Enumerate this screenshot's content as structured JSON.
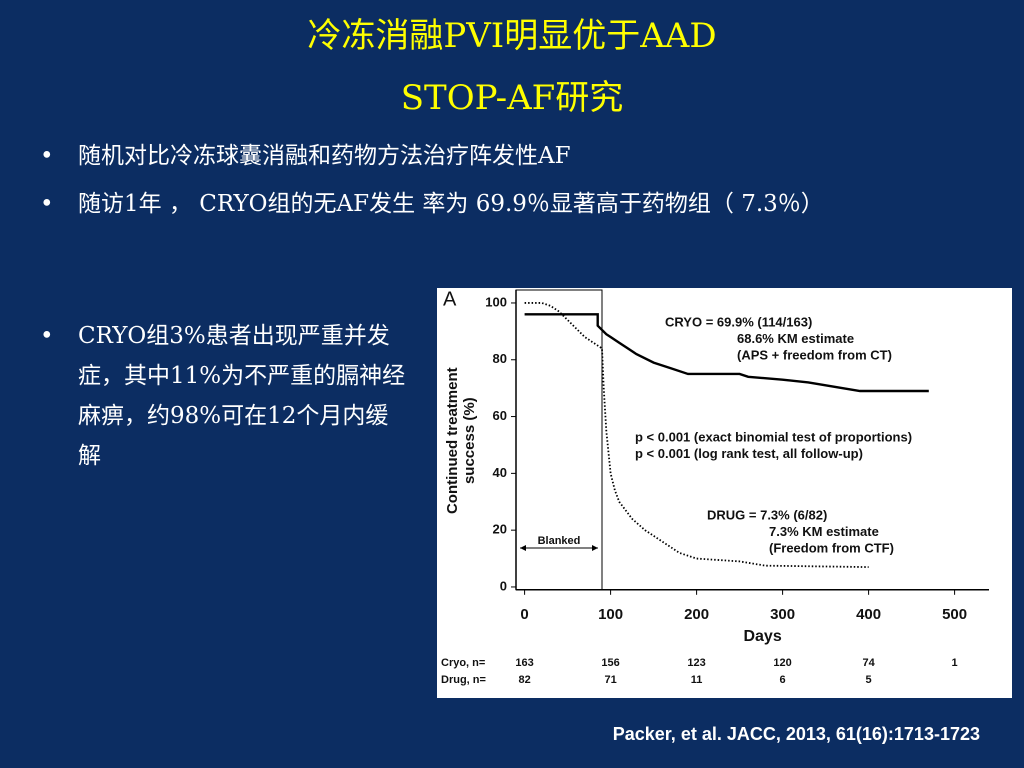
{
  "header": {
    "title": [
      "冷冻消融PVI明显优于AAD",
      "STOP-AF研究"
    ]
  },
  "bullets": [
    "随机对比冷冻球囊消融和药物方法治疗阵发性AF",
    "随访1年 ， CRYO组的无AF发生 率为 69.9％显著高于药物组（ 7.3％）"
  ],
  "side_bullet": "CRYO组3%患者出现严重并发症，其中11%为不严重的膈神经麻痹，约98%可在12个月内缓解",
  "citation": "Packer, et al.  JACC, 2013, 61(16):1713-1723",
  "chart_data": {
    "type": "line",
    "panel_label": "A",
    "xlabel": "Days",
    "ylabel": [
      "Continued treatment",
      "success (%)"
    ],
    "xlim": [
      -10,
      540
    ],
    "xticks": [
      0,
      100,
      200,
      300,
      400,
      500
    ],
    "ylim": [
      -1,
      104
    ],
    "yticks": [
      0,
      20,
      40,
      60,
      80,
      100
    ],
    "blanked": {
      "label": "Blanked",
      "range": [
        -10,
        90
      ]
    },
    "series": [
      {
        "name": "CRYO",
        "color": "#000000",
        "style": "solid",
        "x": [
          0,
          85,
          85,
          95,
          100,
          110,
          120,
          130,
          150,
          170,
          190,
          250,
          260,
          300,
          330,
          370,
          390,
          470
        ],
        "values": [
          96,
          96,
          92,
          89,
          88,
          86,
          84,
          82,
          79,
          77,
          75,
          75,
          74,
          73,
          72,
          70,
          69,
          69
        ]
      },
      {
        "name": "DRUG",
        "color": "#000000",
        "style": "dotted",
        "x": [
          0,
          20,
          30,
          40,
          50,
          60,
          70,
          80,
          90,
          92,
          95,
          100,
          105,
          110,
          125,
          140,
          160,
          180,
          200,
          250,
          280,
          400
        ],
        "values": [
          100,
          100,
          99,
          97,
          94,
          91,
          88,
          86,
          84,
          70,
          55,
          40,
          34,
          30,
          24,
          20,
          16,
          12,
          10,
          9,
          7.5,
          7
        ]
      }
    ],
    "annotations": [
      [
        "CRYO = 69.9% (114/163)",
        "68.6% KM estimate",
        "(APS + freedom from CT)"
      ],
      [
        "p < 0.001 (exact binomial test of proportions)",
        "p < 0.001 (log rank test, all follow-up)"
      ],
      [
        "DRUG = 7.3% (6/82)",
        "7.3% KM estimate",
        "(Freedom from CTF)"
      ]
    ],
    "at_risk": [
      {
        "label": "Cryo, n=",
        "values": [
          163,
          156,
          123,
          120,
          74,
          1
        ]
      },
      {
        "label": "Drug, n=",
        "values": [
          82,
          71,
          11,
          6,
          5
        ]
      }
    ]
  }
}
